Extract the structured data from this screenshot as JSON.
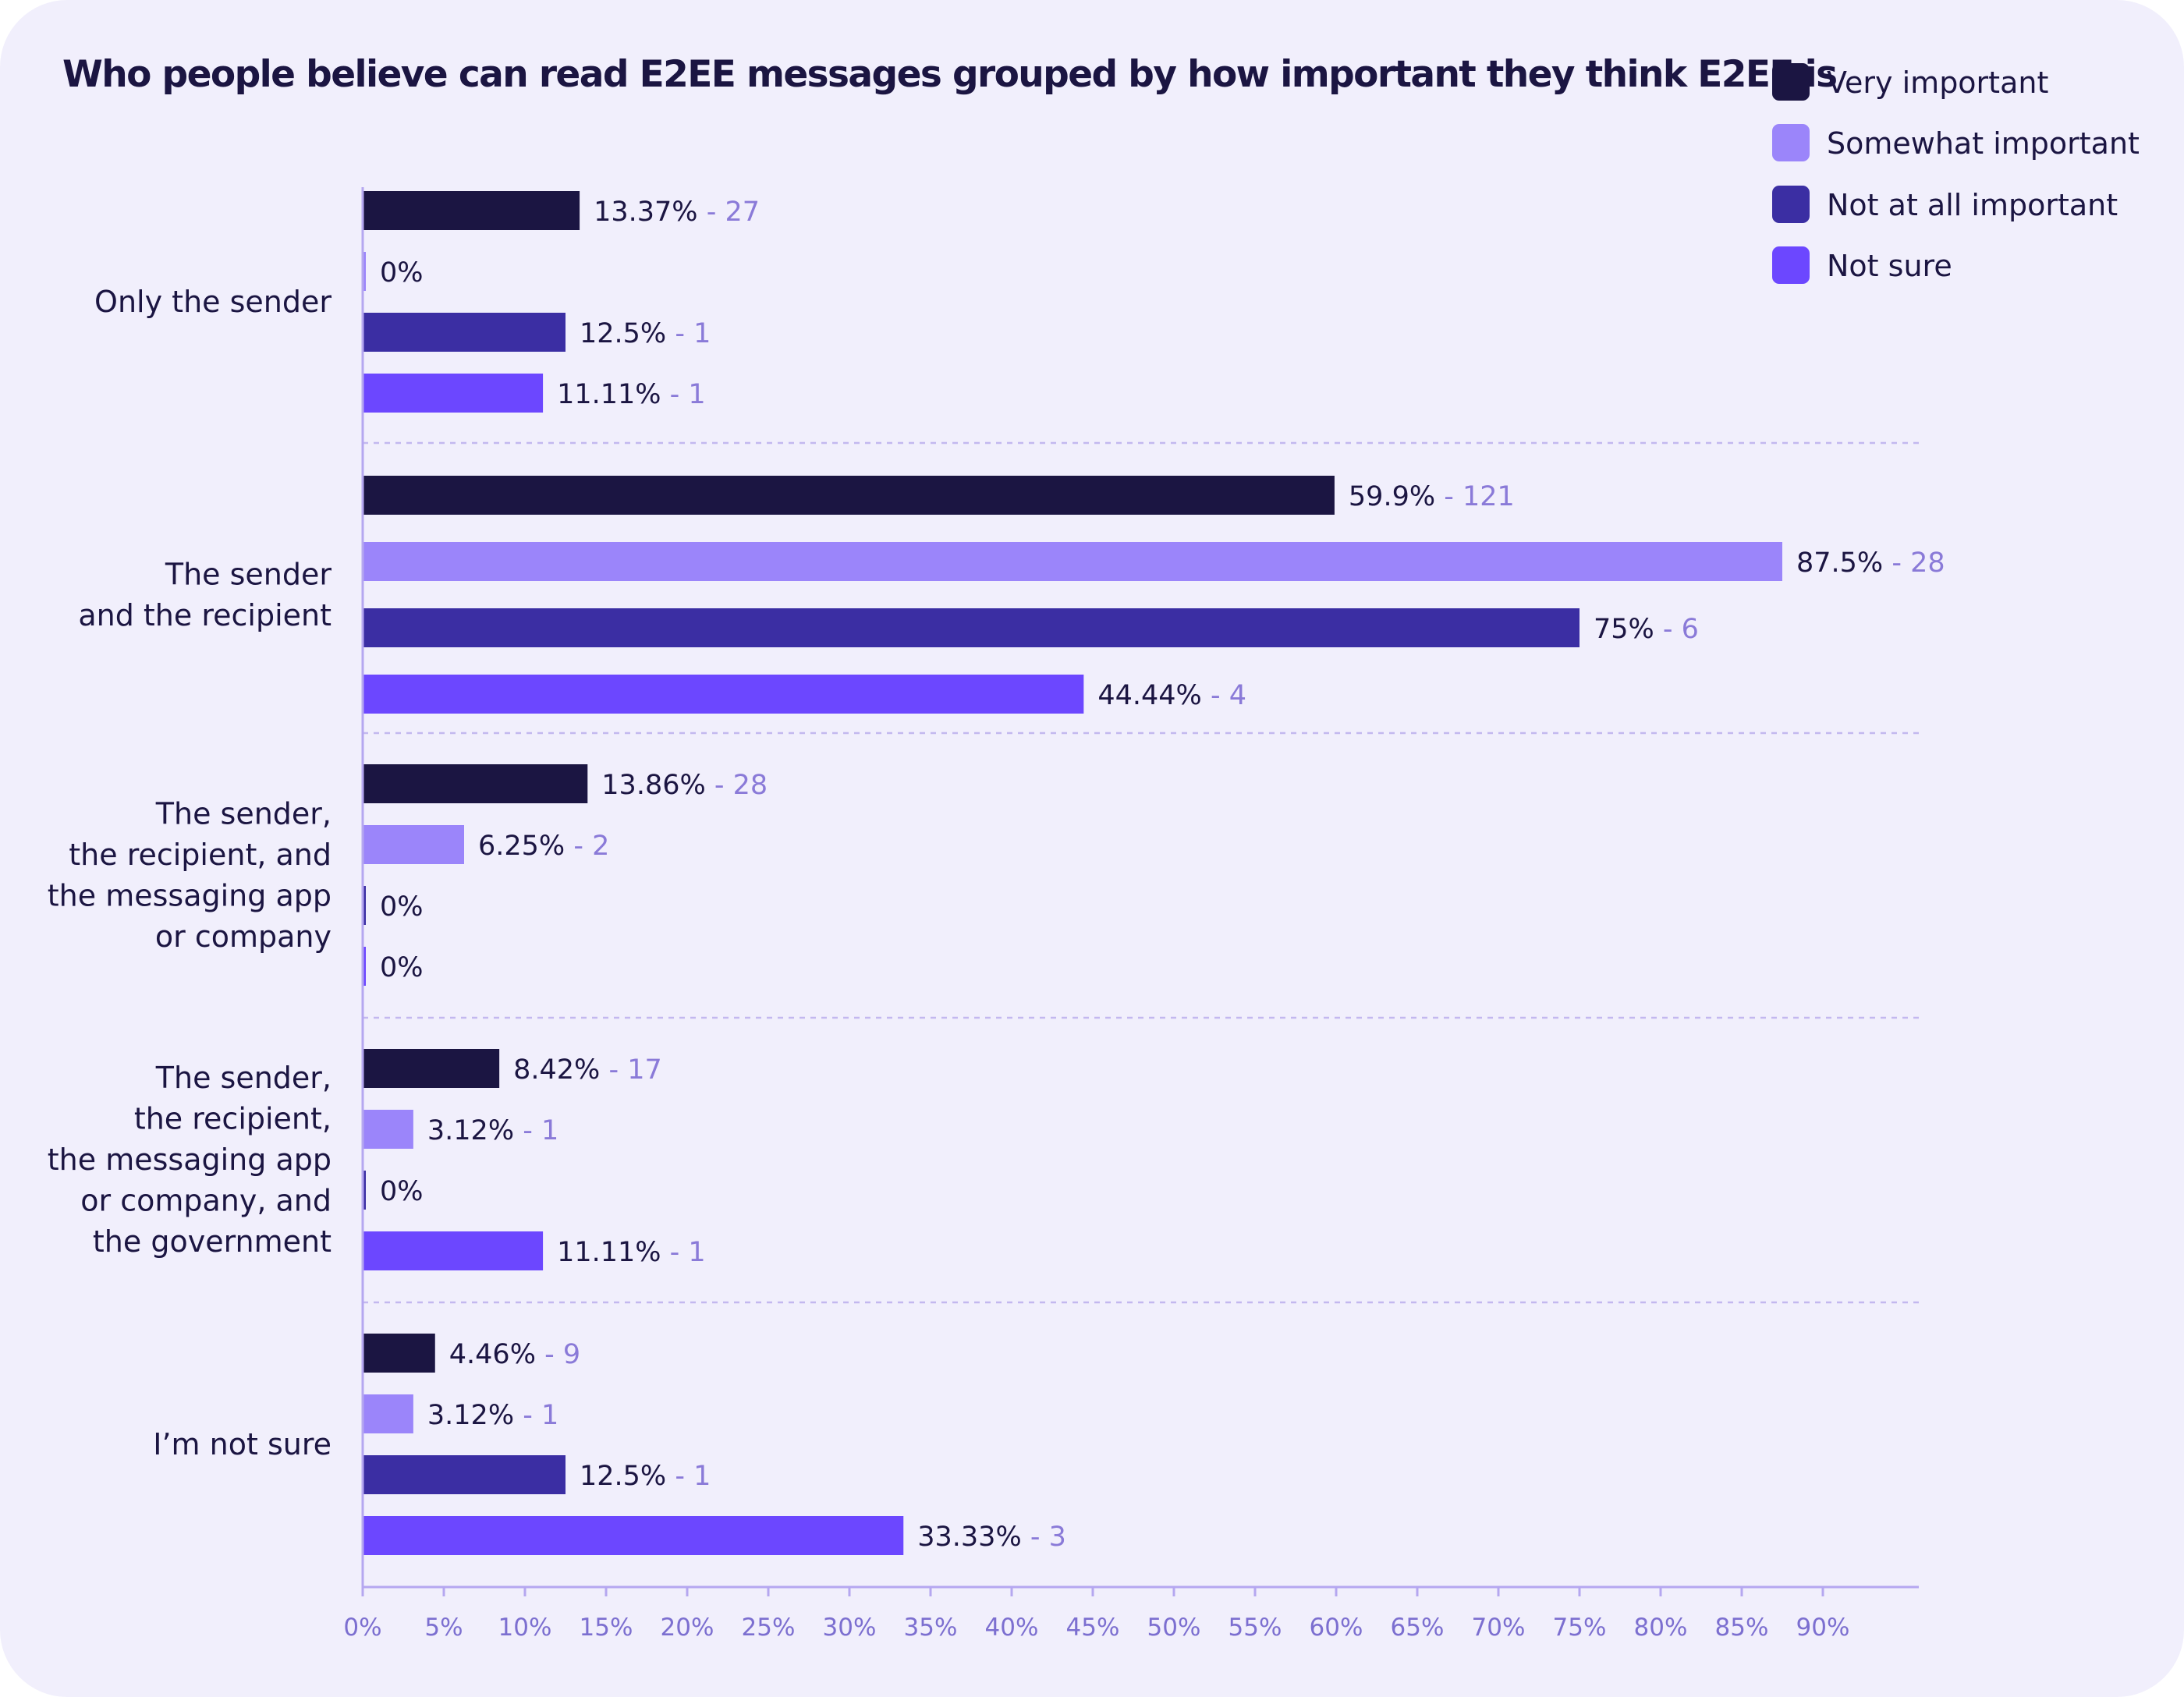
{
  "title": "Who people believe can read E2EE messages grouped by how important they think E2EE is",
  "chart_data": {
    "type": "bar",
    "orientation": "horizontal",
    "title": "Who people believe can read E2EE messages grouped by how important they think E2EE is",
    "xlabel": "",
    "ylabel": "",
    "xlim": [
      0,
      96
    ],
    "x_ticks": [
      "0%",
      "5%",
      "10%",
      "15%",
      "20%",
      "25%",
      "30%",
      "35%",
      "40%",
      "45%",
      "50%",
      "55%",
      "60%",
      "65%",
      "70%",
      "75%",
      "80%",
      "85%",
      "90%"
    ],
    "legend_position": "top-right",
    "grid": false,
    "categories": [
      [
        "Only the sender"
      ],
      [
        "The sender",
        "and the recipient"
      ],
      [
        "The sender,",
        "the recipient, and",
        "the messaging app",
        "or company"
      ],
      [
        "The sender,",
        "the recipient,",
        "the messaging app",
        "or company, and",
        "the government"
      ],
      [
        "I’m not sure"
      ]
    ],
    "series": [
      {
        "name": "Very important",
        "color": "#1b1542",
        "values": [
          13.37,
          59.9,
          13.86,
          8.42,
          4.46
        ],
        "labels": [
          "13.37%",
          "59.9%",
          "13.86%",
          "8.42%",
          "4.46%"
        ],
        "counts": [
          "- 27",
          "- 121",
          "- 28",
          "- 17",
          "- 9"
        ]
      },
      {
        "name": "Somewhat important",
        "color": "#9b85fa",
        "values": [
          0,
          87.5,
          6.25,
          3.12,
          3.12
        ],
        "labels": [
          "0%",
          "87.5%",
          "6.25%",
          "3.12%",
          "3.12%"
        ],
        "counts": [
          "",
          "- 28",
          "- 2",
          "- 1",
          "- 1"
        ]
      },
      {
        "name": "Not at all important",
        "color": "#3b2ea3",
        "values": [
          12.5,
          75,
          0,
          0,
          12.5
        ],
        "labels": [
          "12.5%",
          "75%",
          "0%",
          "0%",
          "12.5%"
        ],
        "counts": [
          "- 1",
          "- 6",
          "",
          "",
          "- 1"
        ]
      },
      {
        "name": "Not sure",
        "color": "#6c47ff",
        "values": [
          11.11,
          44.44,
          0,
          11.11,
          33.33
        ],
        "labels": [
          "11.11%",
          "44.44%",
          "0%",
          "11.11%",
          "33.33%"
        ],
        "counts": [
          "- 1",
          "- 4",
          "",
          "- 1",
          "- 3"
        ]
      }
    ]
  }
}
